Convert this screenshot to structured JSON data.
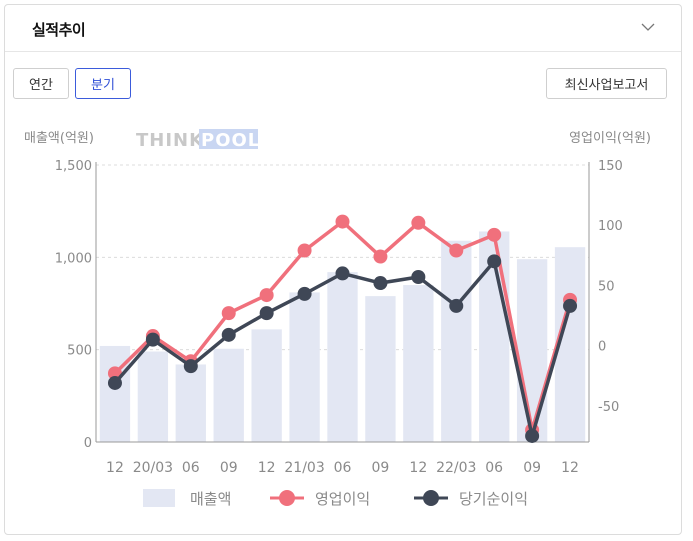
{
  "header": {
    "title": "실적추이"
  },
  "toggle": {
    "annual_label": "연간",
    "quarter_label": "분기"
  },
  "report_button_label": "최신사업보고서",
  "logo": {
    "think": "THINK",
    "pool": "POOL"
  },
  "colors": {
    "bar": "#e3e7f3",
    "operating": "#f0707c",
    "net": "#3f4756",
    "active": "#3b5bdb"
  },
  "chart_data": {
    "type": "bar",
    "categories": [
      "12",
      "20/03",
      "06",
      "09",
      "12",
      "21/03",
      "06",
      "09",
      "12",
      "22/03",
      "06",
      "09",
      "12"
    ],
    "ylabel": "매출액(억원)",
    "y2label": "영업이익(억원)",
    "ylim": [
      0,
      1500
    ],
    "y2lim": [
      -80,
      150
    ],
    "yticks": [
      "0",
      "500",
      "1,000",
      "1,500"
    ],
    "y2ticks": [
      "-50",
      "0",
      "50",
      "100",
      "150"
    ],
    "grid": true,
    "legend_position": "bottom",
    "series": [
      {
        "name": "매출액",
        "kind": "bar",
        "axis": "left",
        "values": [
          520,
          490,
          420,
          505,
          610,
          810,
          920,
          790,
          850,
          1090,
          1140,
          990,
          1055
        ]
      },
      {
        "name": "영업이익",
        "kind": "line",
        "axis": "right",
        "values": [
          -23,
          8,
          -13,
          27,
          42,
          79,
          103,
          74,
          102,
          79,
          92,
          -70,
          38
        ]
      },
      {
        "name": "당기순이익",
        "kind": "line",
        "axis": "right",
        "values": [
          -31,
          5,
          -17,
          9,
          27,
          43,
          60,
          52,
          57,
          33,
          70,
          -75,
          33
        ]
      }
    ]
  }
}
